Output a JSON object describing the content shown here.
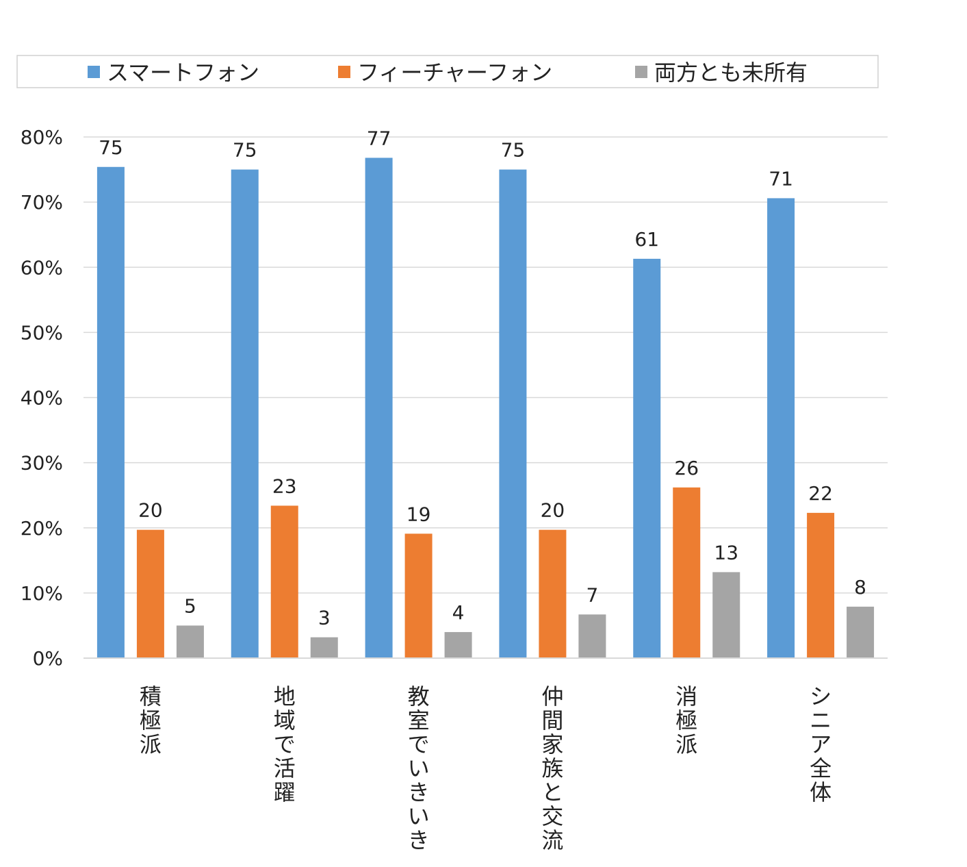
{
  "chart_data": {
    "type": "bar",
    "categories": [
      "積極派",
      "地域で活躍",
      "教室でいきいき",
      "仲間家族と交流",
      "消極派",
      "シニア全体"
    ],
    "series": [
      {
        "name": "スマートフォン",
        "color": "#5b9bd5",
        "values": [
          75,
          75,
          77,
          75,
          61,
          71
        ],
        "plot_values": [
          75.4,
          75.0,
          76.8,
          75.0,
          61.3,
          70.6
        ]
      },
      {
        "name": "フィーチャーフォン",
        "color": "#ed7d31",
        "values": [
          20,
          23,
          19,
          20,
          26,
          22
        ],
        "plot_values": [
          19.7,
          23.4,
          19.1,
          19.7,
          26.2,
          22.3
        ]
      },
      {
        "name": "両方とも未所有",
        "color": "#a5a5a5",
        "values": [
          5,
          3,
          4,
          7,
          13,
          8
        ],
        "plot_values": [
          5.0,
          3.2,
          4.0,
          6.7,
          13.2,
          7.9
        ]
      }
    ],
    "y_ticks": [
      "0%",
      "10%",
      "20%",
      "30%",
      "40%",
      "50%",
      "60%",
      "70%",
      "80%"
    ],
    "ylim": [
      0,
      80
    ],
    "legend_position": "top",
    "grid": true
  }
}
